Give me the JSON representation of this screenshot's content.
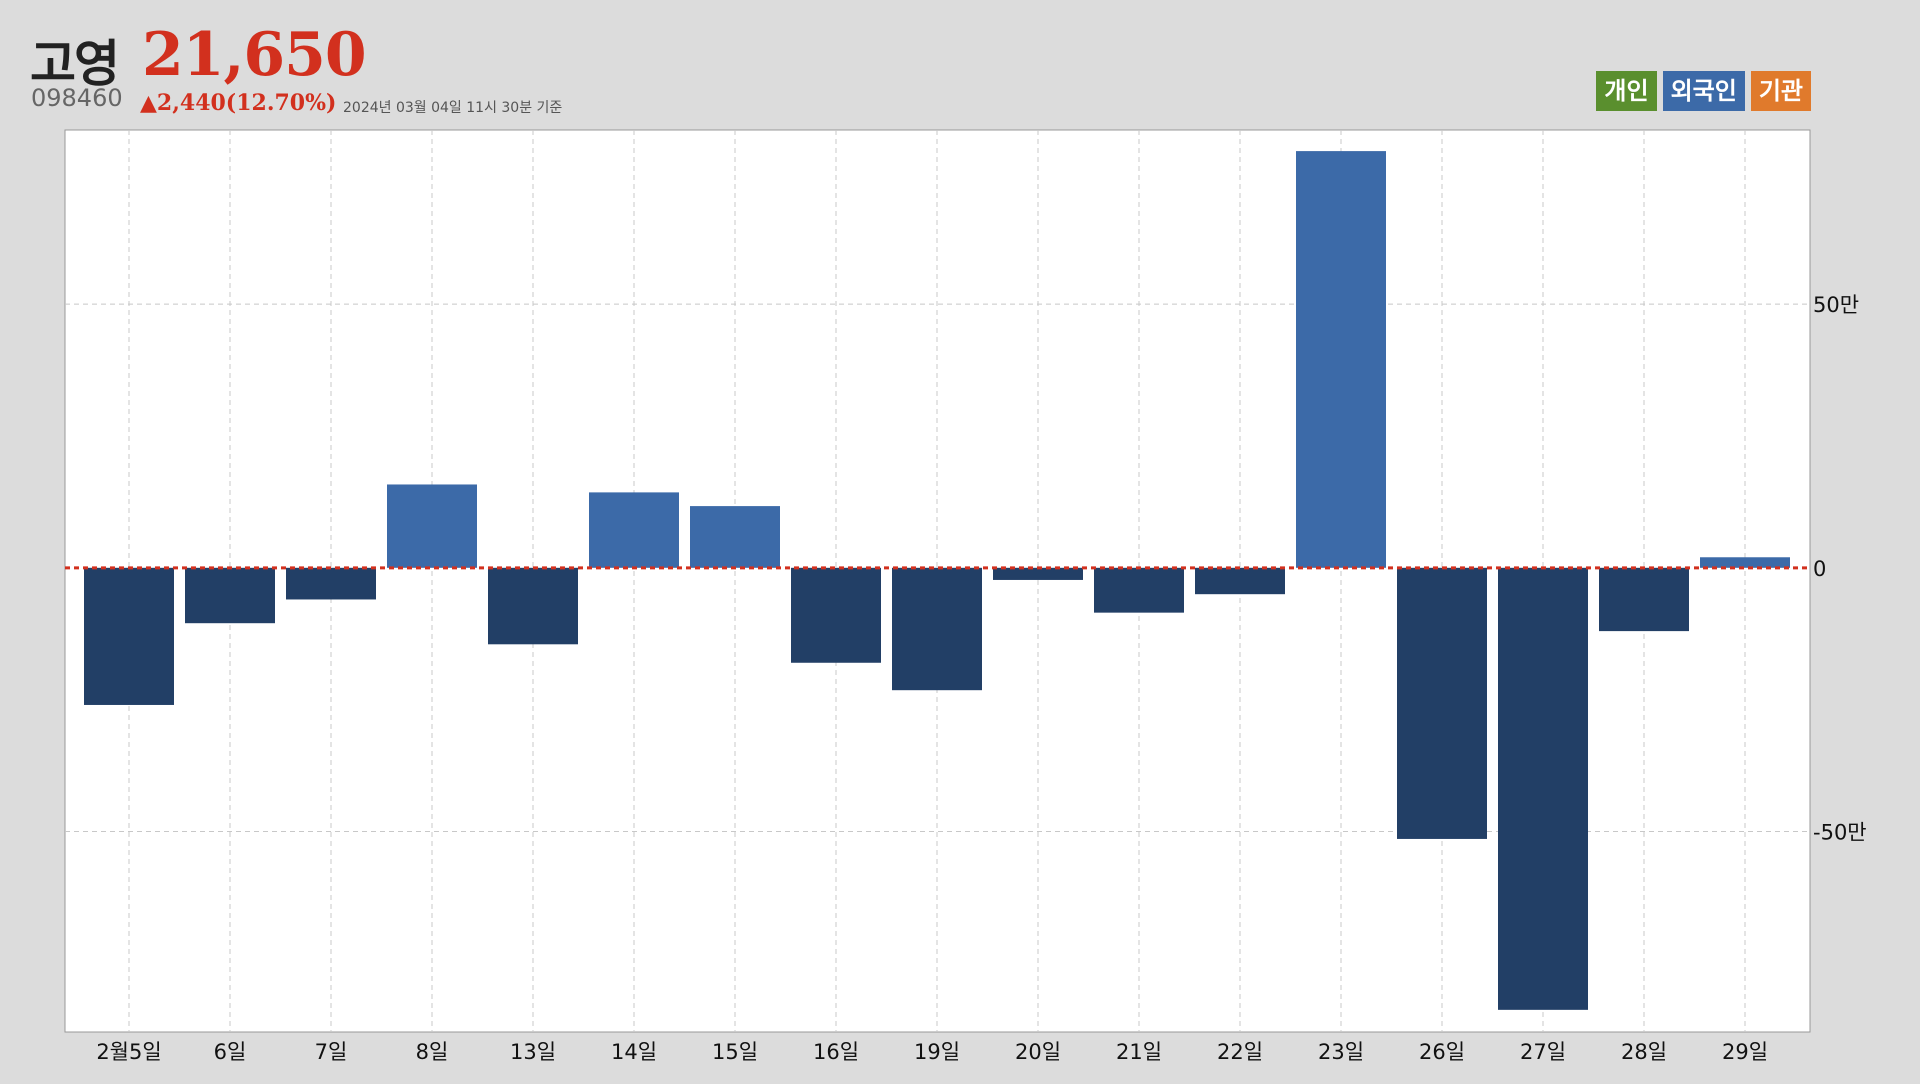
{
  "header": {
    "name": "고영",
    "price": "21,650",
    "code": "098460",
    "change": "▲2,440(12.70%)",
    "timestamp": "2024년 03월 04일 11시 30분 기준"
  },
  "legend": [
    {
      "label": "개인",
      "color": "#5a8f2e"
    },
    {
      "label": "외국인",
      "color": "#3c6aa8"
    },
    {
      "label": "기관",
      "color": "#e07a2c"
    }
  ],
  "colors": {
    "positive_bar": "#3c6aa8",
    "negative_bar": "#223f66",
    "zero_line": "#d2301e",
    "grid": "#c8c8c8"
  },
  "chart_data": {
    "type": "bar",
    "series_name": "외국인",
    "categories": [
      "2월5일",
      "6일",
      "7일",
      "8일",
      "13일",
      "14일",
      "15일",
      "16일",
      "19일",
      "20일",
      "21일",
      "22일",
      "23일",
      "26일",
      "27일",
      "28일",
      "29일"
    ],
    "values": [
      -260000,
      -105000,
      -60000,
      158000,
      -145000,
      143000,
      117000,
      -180000,
      -232000,
      -23000,
      -85000,
      -50000,
      790000,
      -514000,
      -838000,
      -120000,
      20000
    ],
    "ylim": [
      -880000,
      830000
    ],
    "yticks": [
      500000,
      0,
      -500000
    ],
    "ytick_labels": [
      "50만",
      "0",
      "-50만"
    ],
    "grid": true,
    "legend_position": "top-right"
  }
}
